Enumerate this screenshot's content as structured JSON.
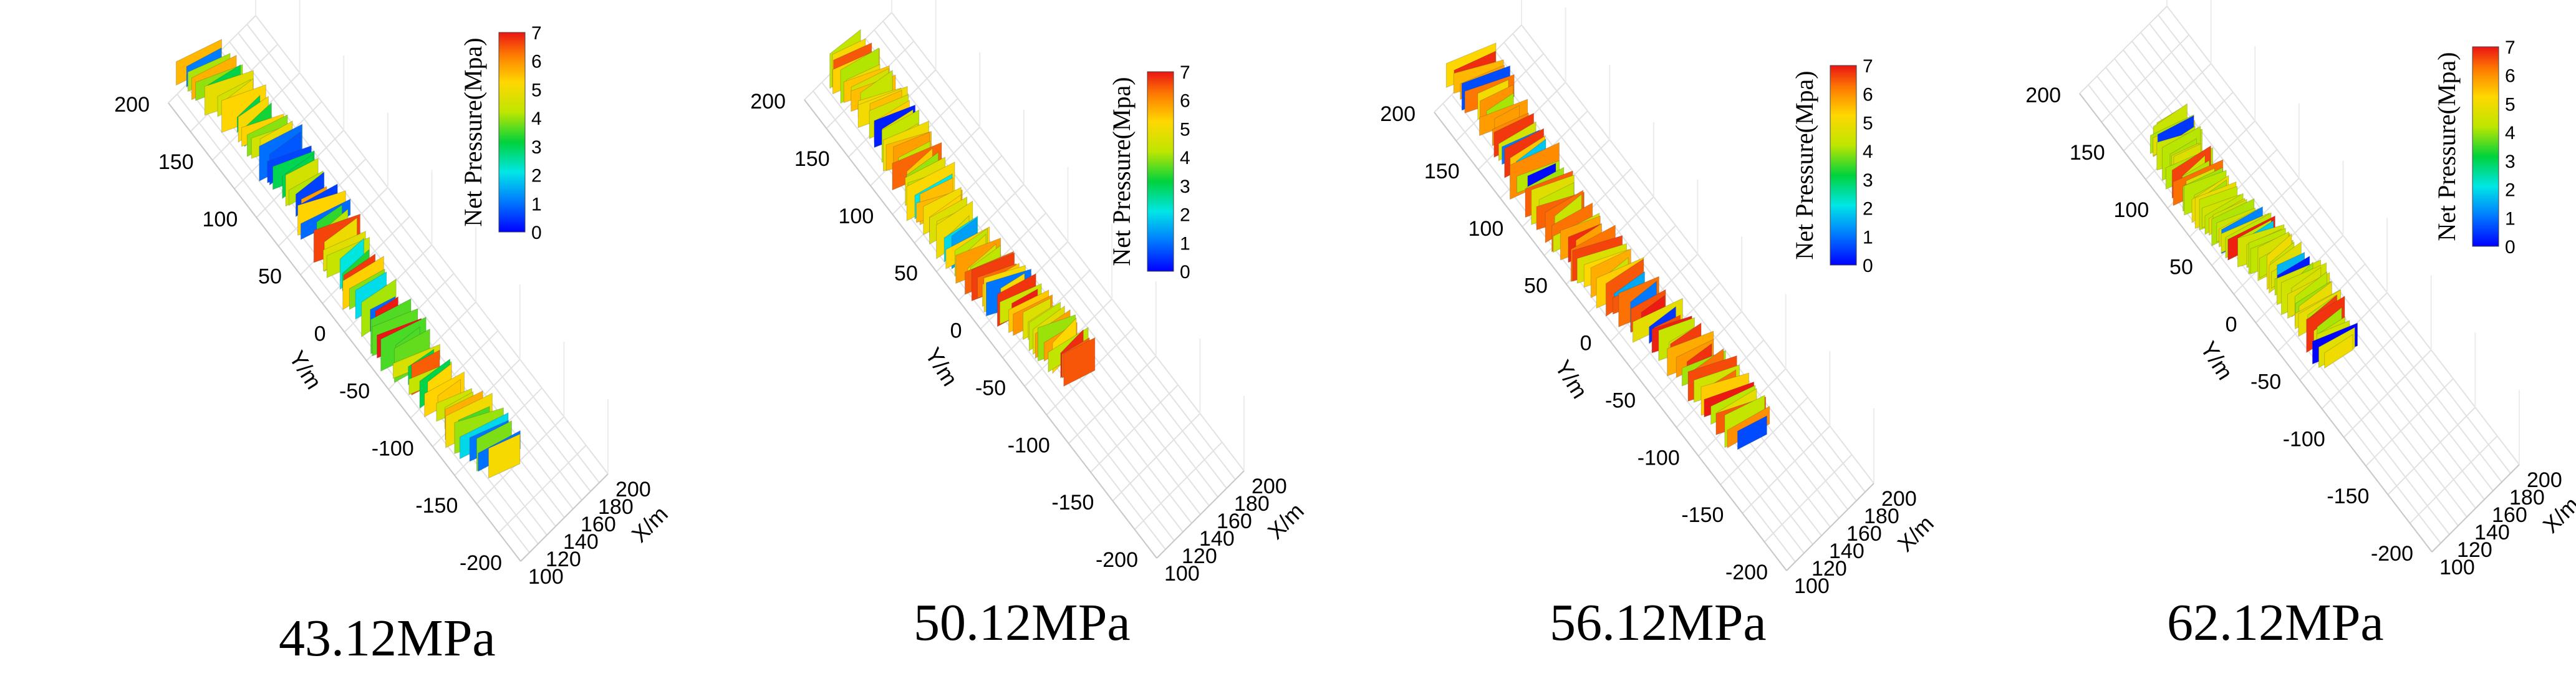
{
  "chart_data": [
    {
      "type": "surface3d",
      "title": "43.12MPa",
      "caption": "43.12MPa",
      "ylabel": "Y/m",
      "xlabel": "X/m",
      "y_ticks": [
        "200",
        "150",
        "100",
        "50",
        "0",
        "-50",
        "-100",
        "-150",
        "-200"
      ],
      "x_ticks": [
        "100",
        "120",
        "140",
        "160",
        "180",
        "200"
      ],
      "ylim": [
        -200,
        200
      ],
      "xlim": [
        100,
        200
      ],
      "colorbar": {
        "label": "Net Pressure(Mpa)",
        "ticks": [
          "0",
          "1",
          "2",
          "3",
          "4",
          "5",
          "6",
          "7"
        ],
        "range": [
          0,
          7
        ]
      },
      "fracture_trace": {
        "y_start": 205,
        "y_end": -140,
        "dominant_pressure": [
          3,
          6
        ]
      }
    },
    {
      "type": "surface3d",
      "title": "50.12MPa",
      "caption": "50.12MPa",
      "ylabel": "Y/m",
      "xlabel": "X/m",
      "y_ticks": [
        "200",
        "150",
        "100",
        "50",
        "0",
        "-50",
        "-100",
        "-150",
        "-200"
      ],
      "x_ticks": [
        "100",
        "120",
        "140",
        "160",
        "180",
        "200"
      ],
      "ylim": [
        -200,
        200
      ],
      "xlim": [
        100,
        200
      ],
      "colorbar": {
        "label": "Net Pressure(Mpa)",
        "ticks": [
          "0",
          "1",
          "2",
          "3",
          "4",
          "5",
          "6",
          "7"
        ],
        "range": [
          0,
          7
        ]
      },
      "fracture_trace": {
        "y_start": 200,
        "y_end": -65,
        "dominant_pressure": [
          4,
          6
        ]
      }
    },
    {
      "type": "surface3d",
      "title": "56.12MPa",
      "caption": "56.12MPa",
      "ylabel": "Y/m",
      "xlabel": "X/m",
      "y_ticks": [
        "200",
        "150",
        "100",
        "50",
        "0",
        "-50",
        "-100",
        "-150",
        "-200"
      ],
      "x_ticks": [
        "100",
        "120",
        "140",
        "160",
        "180",
        "200"
      ],
      "ylim": [
        -200,
        200
      ],
      "xlim": [
        100,
        200
      ],
      "colorbar": {
        "label": "Net Pressure(Mpa)",
        "ticks": [
          "0",
          "1",
          "2",
          "3",
          "4",
          "5",
          "6",
          "7"
        ],
        "range": [
          0,
          7
        ]
      },
      "fracture_trace": {
        "y_start": 205,
        "y_end": -115,
        "dominant_pressure": [
          4,
          7
        ]
      }
    },
    {
      "type": "surface3d",
      "title": "62.12MPa",
      "caption": "62.12MPa",
      "ylabel": "Y/m",
      "xlabel": "X/m",
      "y_ticks": [
        "200",
        "150",
        "100",
        "50",
        "0",
        "-50",
        "-100",
        "-150",
        "-200"
      ],
      "x_ticks": [
        "100",
        "120",
        "140",
        "160",
        "180",
        "200"
      ],
      "ylim": [
        -200,
        200
      ],
      "xlim": [
        100,
        200
      ],
      "colorbar": {
        "label": "Net Pressure(Mpa)",
        "ticks": [
          "0",
          "1",
          "2",
          "3",
          "4",
          "5",
          "6",
          "7"
        ],
        "range": [
          0,
          7
        ]
      },
      "fracture_trace": {
        "y_start": 140,
        "y_end": -55,
        "dominant_pressure": [
          4,
          5
        ]
      }
    }
  ]
}
